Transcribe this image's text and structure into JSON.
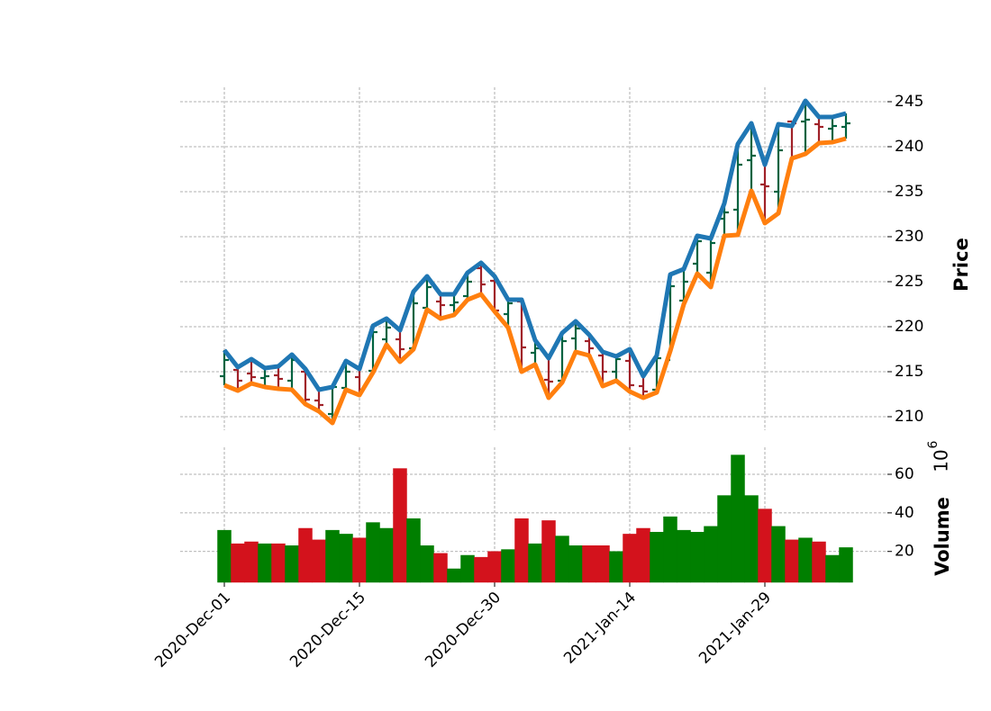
{
  "chart_data": {
    "type": "ohlc",
    "categories": [
      "2020-Dec-01",
      null,
      null,
      null,
      null,
      null,
      null,
      null,
      null,
      null,
      "2020-Dec-15",
      null,
      null,
      null,
      null,
      null,
      null,
      null,
      null,
      null,
      "2020-Dec-30",
      null,
      null,
      null,
      null,
      null,
      null,
      null,
      null,
      null,
      "2021-Jan-14",
      null,
      null,
      null,
      null,
      null,
      null,
      null,
      null,
      null,
      "2021-Jan-29",
      null,
      null,
      null,
      null,
      null,
      null
    ],
    "open": [
      214.5,
      215.2,
      214.8,
      214.3,
      214.6,
      214.0,
      215.0,
      211.8,
      210.3,
      213.2,
      214.4,
      215.1,
      218.6,
      218.6,
      217.6,
      222.1,
      222.8,
      222.4,
      223.4,
      226.5,
      225.1,
      221.4,
      222.8,
      217.1,
      214.1,
      214.0,
      218.7,
      218.4,
      216.8,
      215.0,
      216.2,
      213.4,
      213.0,
      216.3,
      222.9,
      227.0,
      226.0,
      232.0,
      233.0,
      238.5,
      235.8,
      235.0,
      242.8,
      242.8,
      242.5,
      242.0,
      242.2
    ],
    "close": [
      216.3,
      214.0,
      214.4,
      214.5,
      214.2,
      216.3,
      211.9,
      211.3,
      213.3,
      215.0,
      213.0,
      219.4,
      219.9,
      217.5,
      222.6,
      224.4,
      222.4,
      222.7,
      225.0,
      224.7,
      221.8,
      222.6,
      217.7,
      217.6,
      213.9,
      218.4,
      219.8,
      217.6,
      215.0,
      216.4,
      213.5,
      212.8,
      216.5,
      224.5,
      225.0,
      229.5,
      229.3,
      232.7,
      238.0,
      239.0,
      235.6,
      239.6,
      242.6,
      243.0,
      242.2,
      242.3,
      242.6
    ],
    "series": [
      {
        "color": "#1f77b4",
        "values": [
          217.4,
          215.5,
          216.4,
          215.4,
          215.6,
          216.9,
          215.3,
          213.0,
          213.3,
          216.2,
          215.3,
          220.1,
          220.9,
          219.6,
          223.9,
          225.6,
          223.6,
          223.6,
          226.0,
          227.1,
          225.6,
          223.0,
          223.0,
          218.5,
          216.5,
          219.3,
          220.6,
          219.1,
          217.2,
          216.7,
          217.5,
          214.5,
          216.8,
          225.8,
          226.4,
          230.1,
          229.8,
          233.7,
          240.3,
          242.6,
          238.0,
          242.5,
          242.3,
          245.1,
          243.3,
          243.3,
          243.7
        ]
      },
      {
        "color": "#ff7f0e",
        "values": [
          213.5,
          212.9,
          213.7,
          213.3,
          213.1,
          213.0,
          211.4,
          210.6,
          209.3,
          213.0,
          212.4,
          214.9,
          218.0,
          216.1,
          217.5,
          221.9,
          220.9,
          221.3,
          223.0,
          223.6,
          221.7,
          219.9,
          215.0,
          215.8,
          212.1,
          213.8,
          217.2,
          216.8,
          213.4,
          214.0,
          212.8,
          212.1,
          212.7,
          217.3,
          222.5,
          225.9,
          224.4,
          230.1,
          230.2,
          235.1,
          231.5,
          232.6,
          238.7,
          239.2,
          240.4,
          240.5,
          240.9
        ]
      }
    ],
    "up_color": "#006340",
    "down_color": "#a02128",
    "ylim": [
      208.5,
      246.6
    ],
    "yticks": [
      210,
      215,
      220,
      225,
      230,
      235,
      240,
      245
    ],
    "ylabel": "Price",
    "grid": true,
    "volume": {
      "values": [
        31,
        24,
        25,
        24,
        24,
        23,
        32,
        26,
        31,
        29,
        27,
        35,
        32,
        63,
        37,
        23,
        19,
        11,
        18,
        17,
        20,
        21,
        37,
        24,
        36,
        28,
        23,
        23,
        23,
        20,
        29,
        32,
        30,
        38,
        31,
        30,
        33,
        49,
        70,
        49,
        42,
        33,
        26,
        27,
        25,
        18,
        22
      ],
      "up_color": "#007f00",
      "down_color": "#d3121c",
      "ylim": [
        4,
        74
      ],
      "yticks": [
        20,
        40,
        60
      ],
      "ylabel": "Volume",
      "offset_text": "10",
      "offset_exponent": "6"
    }
  }
}
